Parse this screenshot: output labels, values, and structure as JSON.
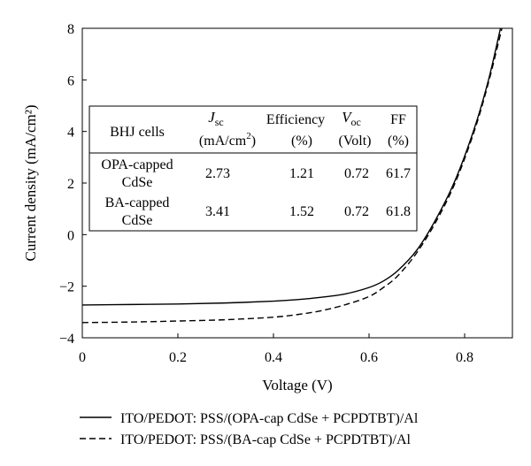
{
  "chart_data": {
    "type": "line",
    "xlabel": "Voltage (V)",
    "ylabel": "Current density (mA/cm²)",
    "xlim": [
      0,
      0.9
    ],
    "ylim": [
      -4,
      8
    ],
    "xticks": [
      0,
      0.2,
      0.4,
      0.6,
      0.8
    ],
    "xtick_labels": [
      "0",
      "0.2",
      "0.4",
      "0.6",
      "0.8"
    ],
    "yticks": [
      -4,
      -2,
      0,
      2,
      4,
      6,
      8
    ],
    "ytick_labels": [
      "−4",
      "−2",
      "0",
      "2",
      "4",
      "6",
      "8"
    ],
    "grid": false,
    "legend_position": "bottom-outside",
    "series": [
      {
        "name": "ITO/PEDOT: PSS/(OPA-cap CdSe + PCPDTBT)/Al",
        "style": "solid",
        "x": [
          0,
          0.1,
          0.2,
          0.3,
          0.4,
          0.45,
          0.5,
          0.55,
          0.6,
          0.63,
          0.66,
          0.7,
          0.74,
          0.78,
          0.82,
          0.85,
          0.875
        ],
        "y": [
          -2.73,
          -2.71,
          -2.69,
          -2.65,
          -2.58,
          -2.52,
          -2.43,
          -2.3,
          -2.05,
          -1.8,
          -1.4,
          -0.6,
          0.6,
          2.1,
          4.1,
          6.0,
          8.0
        ]
      },
      {
        "name": "ITO/PEDOT: PSS/(BA-cap CdSe + PCPDTBT)/Al",
        "style": "dashed",
        "x": [
          0,
          0.1,
          0.2,
          0.3,
          0.4,
          0.45,
          0.5,
          0.55,
          0.6,
          0.63,
          0.66,
          0.7,
          0.74,
          0.78,
          0.82,
          0.85,
          0.878
        ],
        "y": [
          -3.41,
          -3.39,
          -3.35,
          -3.3,
          -3.2,
          -3.1,
          -2.95,
          -2.72,
          -2.4,
          -2.05,
          -1.6,
          -0.7,
          0.5,
          2.0,
          4.0,
          5.9,
          8.0
        ]
      }
    ],
    "table": {
      "header": {
        "col1": "BHJ cells",
        "jsc_symbol": "J",
        "jsc_sub": "sc",
        "jsc_unit": "(mA/cm",
        "jsc_unit_sup": "2",
        "jsc_unit_end": ")",
        "eff_label": "Efficiency",
        "eff_unit": "(%)",
        "voc_symbol": "V",
        "voc_sub": "oc",
        "voc_unit": "(Volt)",
        "ff_label": "FF",
        "ff_unit": "(%)"
      },
      "rows": [
        {
          "name_line1": "OPA-capped",
          "name_line2": "CdSe",
          "jsc": "2.73",
          "eff": "1.21",
          "voc": "0.72",
          "ff": "61.7"
        },
        {
          "name_line1": "BA-capped",
          "name_line2": "CdSe",
          "jsc": "3.41",
          "eff": "1.52",
          "voc": "0.72",
          "ff": "61.8"
        }
      ]
    }
  }
}
